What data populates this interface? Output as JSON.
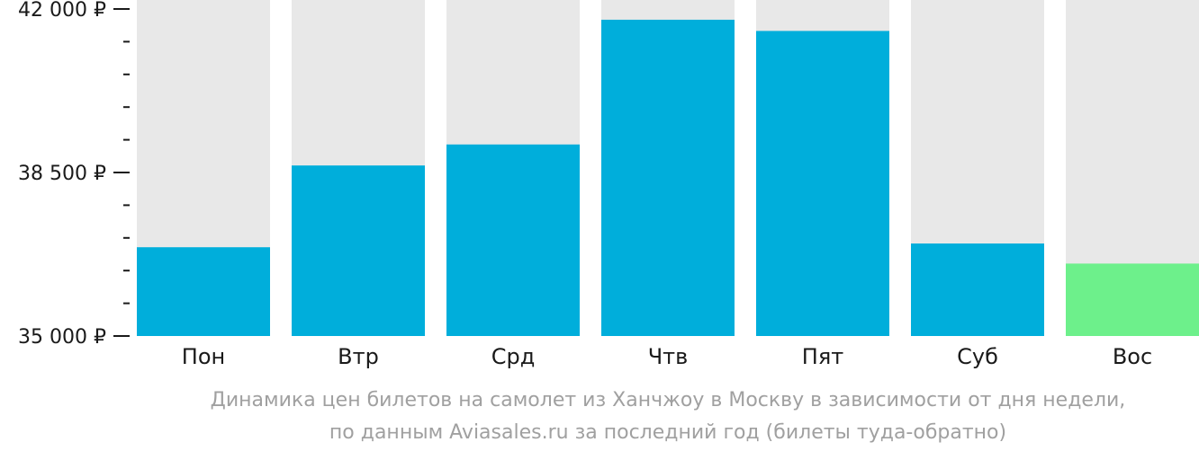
{
  "chart_data": {
    "type": "bar",
    "categories": [
      "Пон",
      "Втр",
      "Срд",
      "Чтв",
      "Пят",
      "Суб",
      "Вос"
    ],
    "values": [
      36900,
      38650,
      39100,
      41770,
      41530,
      36980,
      36550
    ],
    "ylim": [
      35000,
      42000
    ],
    "yticks": [
      {
        "value": 42000,
        "label": "42 000 ₽"
      },
      {
        "value": 38500,
        "label": "38 500 ₽"
      },
      {
        "value": 35000,
        "label": "35 000 ₽"
      }
    ],
    "minor_tick_step": 700,
    "bar_color": "#00AEDB",
    "highlight_color": "#6DF08B",
    "highlight_index": 6,
    "track_color": "#E8E8E8",
    "caption": [
      "Динамика цен билетов на самолет из Ханчжоу в Москву в зависимости от дня недели,",
      "по данным Aviasales.ru за последний год (билеты туда-обратно)"
    ]
  }
}
